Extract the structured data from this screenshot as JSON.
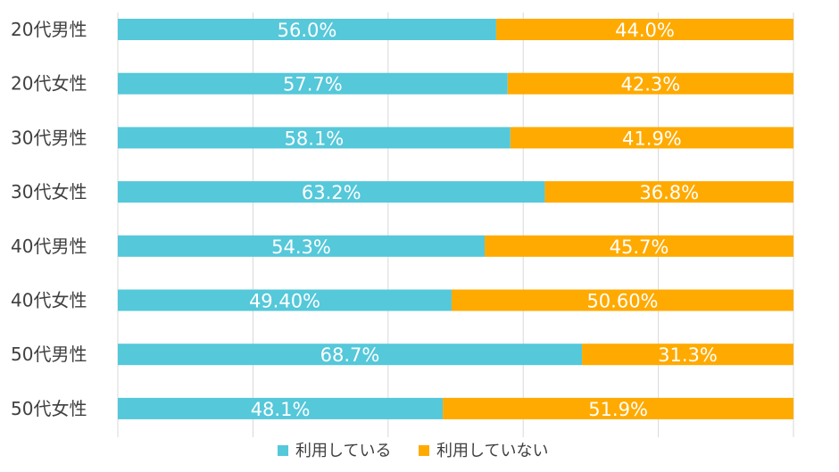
{
  "chart_data": {
    "type": "bar",
    "orientation": "horizontal",
    "stacked": "percent",
    "categories": [
      "20代男性",
      "20代女性",
      "30代男性",
      "30代女性",
      "40代男性",
      "40代女性",
      "50代男性",
      "50代女性"
    ],
    "series": [
      {
        "name": "利用している",
        "color": "#55C8DA",
        "values": [
          56.0,
          57.7,
          58.1,
          63.2,
          54.3,
          49.4,
          68.7,
          48.1
        ],
        "labels": [
          "56.0%",
          "57.7%",
          "58.1%",
          "63.2%",
          "54.3%",
          "49.40%",
          "68.7%",
          "48.1%"
        ]
      },
      {
        "name": "利用していない",
        "color": "#FFAA00",
        "values": [
          44.0,
          42.3,
          41.9,
          36.8,
          45.7,
          50.6,
          31.3,
          51.9
        ],
        "labels": [
          "44.0%",
          "42.3%",
          "41.9%",
          "36.8%",
          "45.7%",
          "50.60%",
          "31.3%",
          "51.9%"
        ]
      }
    ],
    "xlim": [
      0,
      100
    ],
    "grid": true,
    "legend": "bottom"
  }
}
